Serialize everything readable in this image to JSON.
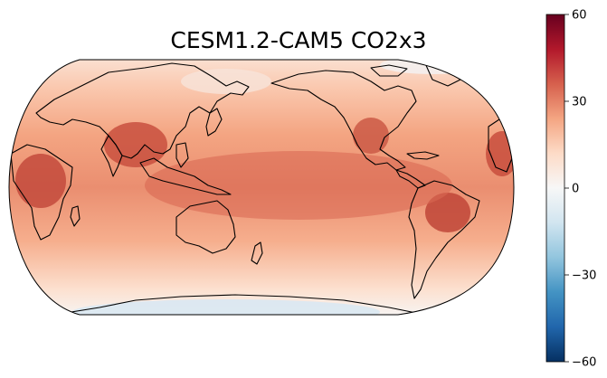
{
  "title": "CESM1.2-CAM5 CO2x3",
  "projection": "Robinson",
  "central_longitude": "Pacific-centered",
  "colormap": {
    "name": "RdBu_r",
    "stops": [
      "#053061",
      "#2166ac",
      "#4393c3",
      "#92c5de",
      "#d1e5f0",
      "#f7f7f7",
      "#fddbc7",
      "#f4a582",
      "#d6604d",
      "#b2182b",
      "#67001f"
    ]
  },
  "colorbar": {
    "range": [
      -60,
      60
    ],
    "ticks": [
      {
        "value": 60,
        "label": "60"
      },
      {
        "value": 30,
        "label": "30"
      },
      {
        "value": 0,
        "label": "0"
      },
      {
        "value": -30,
        "label": "−30"
      },
      {
        "value": -60,
        "label": "−60"
      }
    ]
  },
  "field_summary": {
    "tropics": 28,
    "midlatitudes": 20,
    "arctic": 8,
    "antarctic": -4
  }
}
